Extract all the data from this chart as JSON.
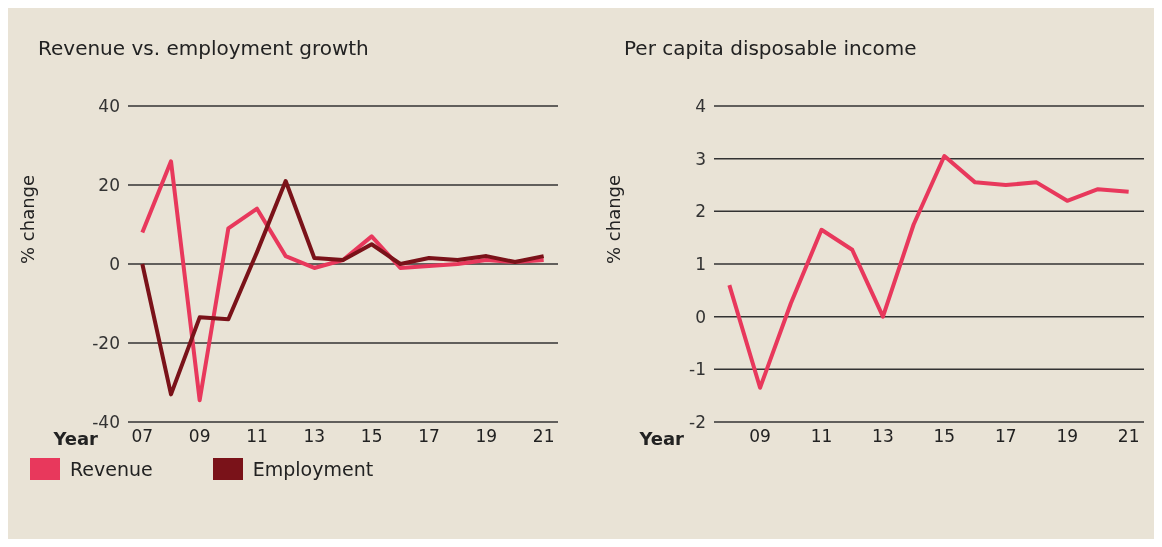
{
  "chart_data": [
    {
      "type": "line",
      "title": "Revenue vs. employment growth",
      "xlabel": "Year",
      "ylabel": "% change",
      "x": [
        2007,
        2008,
        2009,
        2010,
        2011,
        2012,
        2013,
        2014,
        2015,
        2016,
        2017,
        2018,
        2019,
        2020,
        2021
      ],
      "xlim": [
        2006.5,
        2021.5
      ],
      "xticks": [
        {
          "value": 2007,
          "label": "07"
        },
        {
          "value": 2009,
          "label": "09"
        },
        {
          "value": 2011,
          "label": "11"
        },
        {
          "value": 2013,
          "label": "13"
        },
        {
          "value": 2015,
          "label": "15"
        },
        {
          "value": 2017,
          "label": "17"
        },
        {
          "value": 2019,
          "label": "19"
        },
        {
          "value": 2021,
          "label": "21"
        }
      ],
      "ylim": [
        -40,
        40
      ],
      "yticks": [
        -40,
        -20,
        0,
        20,
        40
      ],
      "grid": "y",
      "legend": "bottom",
      "marker": "none",
      "line_style": "solid",
      "series": [
        {
          "name": "Revenue",
          "color": "#e8385c",
          "values": [
            8,
            26,
            -34.5,
            9,
            14,
            2,
            -1,
            1,
            7,
            -1,
            -0.5,
            0,
            1,
            0.5,
            1
          ]
        },
        {
          "name": "Employment",
          "color": "#7a1219",
          "values": [
            0,
            -33,
            -13.5,
            -14,
            3,
            21,
            1.5,
            1,
            5,
            0,
            1.5,
            1,
            2,
            0.5,
            2
          ]
        }
      ]
    },
    {
      "type": "line",
      "title": "Per capita disposable income",
      "xlabel": "Year",
      "ylabel": "% change",
      "x": [
        2008,
        2009,
        2010,
        2011,
        2012,
        2013,
        2014,
        2015,
        2016,
        2017,
        2018,
        2019,
        2020,
        2021
      ],
      "xlim": [
        2007.5,
        2021.5
      ],
      "xticks": [
        {
          "value": 2009,
          "label": "09"
        },
        {
          "value": 2011,
          "label": "11"
        },
        {
          "value": 2013,
          "label": "13"
        },
        {
          "value": 2015,
          "label": "15"
        },
        {
          "value": 2017,
          "label": "17"
        },
        {
          "value": 2019,
          "label": "19"
        },
        {
          "value": 2021,
          "label": "21"
        }
      ],
      "ylim": [
        -2,
        4
      ],
      "yticks": [
        -2,
        -1,
        0,
        1,
        2,
        3,
        4
      ],
      "grid": "y",
      "marker": "none",
      "line_style": "solid",
      "series": [
        {
          "color": "#e8385c",
          "values": [
            0.6,
            -1.35,
            0.25,
            1.65,
            1.27,
            0,
            1.75,
            3.05,
            2.55,
            2.5,
            2.55,
            2.2,
            2.42,
            2.37
          ]
        }
      ]
    }
  ]
}
